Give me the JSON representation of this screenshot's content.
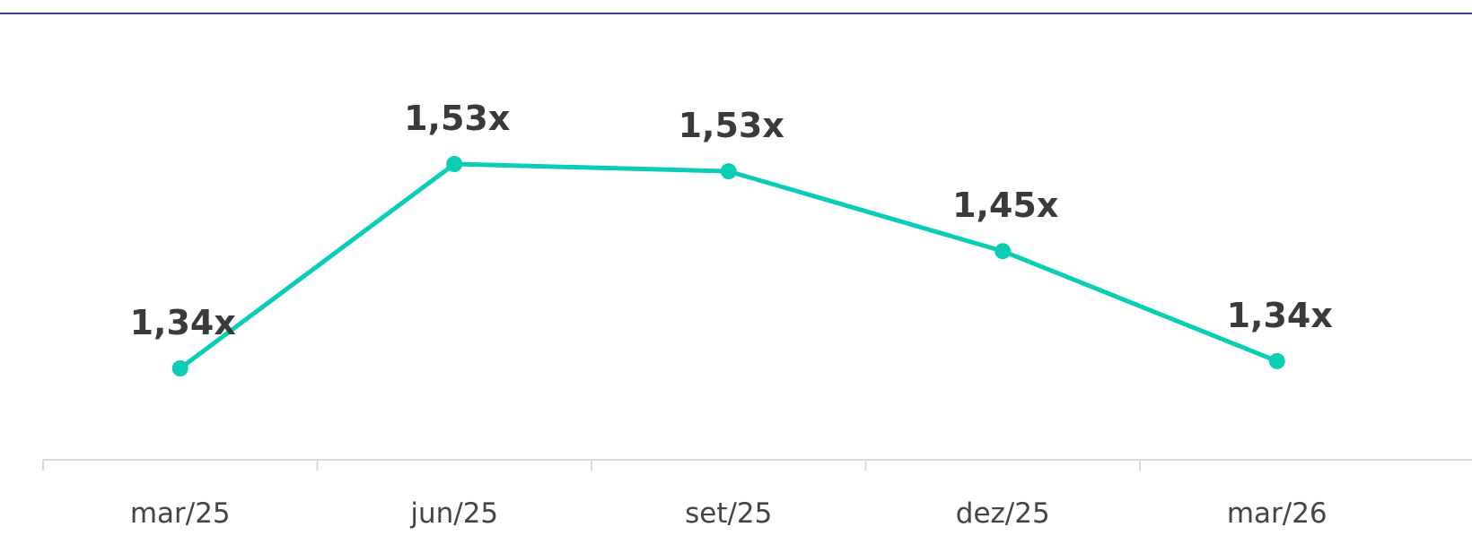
{
  "chart_data": {
    "type": "line",
    "categories": [
      "mar/25",
      "jun/25",
      "set/25",
      "dez/25",
      "mar/26"
    ],
    "series": [
      {
        "color": "#0acdb5",
        "values": [
          1.336,
          1.533,
          1.526,
          1.449,
          1.343
        ],
        "value_labels": [
          "1,34x",
          "1,53x",
          "1,53x",
          "1,45x",
          "1,34x"
        ]
      }
    ]
  }
}
